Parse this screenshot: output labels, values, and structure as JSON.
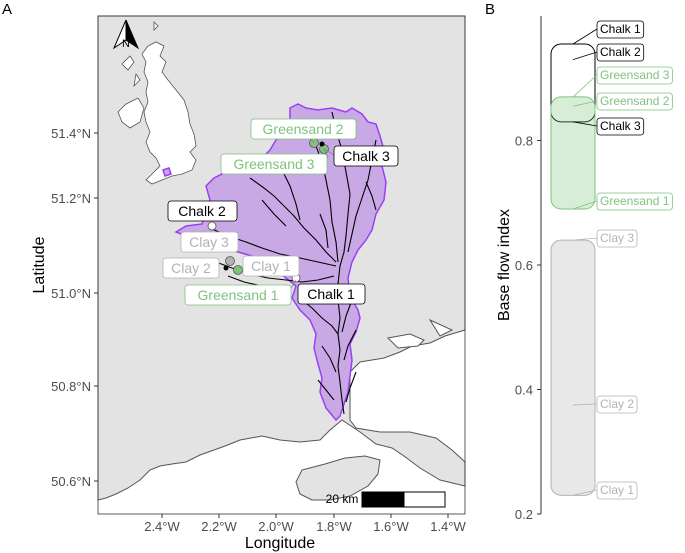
{
  "panels": {
    "a": "A",
    "b": "B"
  },
  "map": {
    "xlabel": "Longitude",
    "ylabel": "Latitude",
    "x_ticks": [
      "2.4°W",
      "2.2°W",
      "2.0°W",
      "1.8°W",
      "1.6°W",
      "1.4°W"
    ],
    "y_ticks": [
      "51.4°N",
      "51.2°N",
      "51.0°N",
      "50.8°N",
      "50.6°N"
    ],
    "north_label": "N",
    "scale_label": "20 km",
    "colors": {
      "land": "#e3e3e3",
      "sea": "#ffffff",
      "catchment": "#c9a8e6",
      "catchment_edge": "#9b3ff5",
      "chalk": "#000000",
      "greensand": "#7fc27f",
      "clay": "#b3b3b3"
    },
    "sites": [
      {
        "label": "Greensand 2",
        "group": "Greensand"
      },
      {
        "label": "Chalk 3",
        "group": "Chalk"
      },
      {
        "label": "Greensand 3",
        "group": "Greensand"
      },
      {
        "label": "Chalk 2",
        "group": "Chalk"
      },
      {
        "label": "Clay 3",
        "group": "Clay"
      },
      {
        "label": "Clay 2",
        "group": "Clay"
      },
      {
        "label": "Clay 1",
        "group": "Clay"
      },
      {
        "label": "Greensand 1",
        "group": "Greensand"
      },
      {
        "label": "Chalk 1",
        "group": "Chalk"
      }
    ]
  },
  "chart_data": {
    "type": "scatter",
    "ylabel": "Base flow index",
    "ylim": [
      0.2,
      1.0
    ],
    "y_ticks": [
      "0.2",
      "0.4",
      "0.6",
      "0.8"
    ],
    "groups": [
      {
        "name": "Chalk",
        "color": "#000000",
        "range": [
          0.83,
          0.955
        ]
      },
      {
        "name": "Greensand",
        "color": "#7fc27f",
        "range": [
          0.69,
          0.87
        ]
      },
      {
        "name": "Clay",
        "color": "#b3b3b3",
        "range": [
          0.23,
          0.64
        ]
      }
    ],
    "points": [
      {
        "label": "Chalk 1",
        "value": 0.955,
        "group": "Chalk"
      },
      {
        "label": "Chalk 2",
        "value": 0.93,
        "group": "Chalk"
      },
      {
        "label": "Chalk 3",
        "value": 0.83,
        "group": "Chalk"
      },
      {
        "label": "Greensand 3",
        "value": 0.87,
        "group": "Greensand"
      },
      {
        "label": "Greensand 2",
        "value": 0.855,
        "group": "Greensand"
      },
      {
        "label": "Greensand 1",
        "value": 0.69,
        "group": "Greensand"
      },
      {
        "label": "Clay 3",
        "value": 0.64,
        "group": "Clay"
      },
      {
        "label": "Clay 2",
        "value": 0.375,
        "group": "Clay"
      },
      {
        "label": "Clay 1",
        "value": 0.23,
        "group": "Clay"
      }
    ]
  }
}
